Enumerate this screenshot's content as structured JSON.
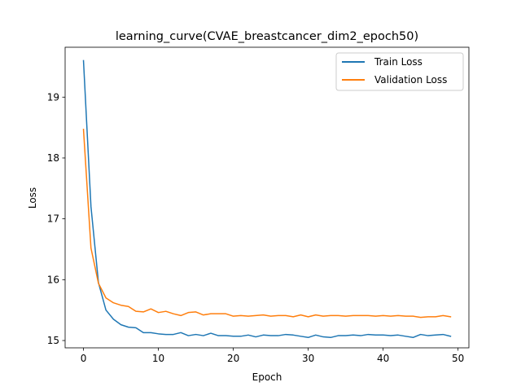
{
  "chart_data": {
    "type": "line",
    "title": "learning_curve(CVAE_breastcancer_dim2_epoch50)",
    "xlabel": "Epoch",
    "ylabel": "Loss",
    "xlim": [
      -2.45,
      51.45
    ],
    "ylim": [
      14.88,
      19.82
    ],
    "xticks": [
      0,
      10,
      20,
      30,
      40,
      50
    ],
    "yticks": [
      15,
      16,
      17,
      18,
      19
    ],
    "grid": false,
    "legend_position": "top-right",
    "x": [
      0,
      1,
      2,
      3,
      4,
      5,
      6,
      7,
      8,
      9,
      10,
      11,
      12,
      13,
      14,
      15,
      16,
      17,
      18,
      19,
      20,
      21,
      22,
      23,
      24,
      25,
      26,
      27,
      28,
      29,
      30,
      31,
      32,
      33,
      34,
      35,
      36,
      37,
      38,
      39,
      40,
      41,
      42,
      43,
      44,
      45,
      46,
      47,
      48,
      49
    ],
    "series": [
      {
        "name": "Train Loss",
        "color": "#1f77b4",
        "values": [
          19.6,
          17.2,
          15.95,
          15.5,
          15.35,
          15.26,
          15.22,
          15.21,
          15.13,
          15.13,
          15.11,
          15.1,
          15.1,
          15.13,
          15.08,
          15.1,
          15.08,
          15.12,
          15.08,
          15.08,
          15.07,
          15.07,
          15.09,
          15.06,
          15.09,
          15.08,
          15.08,
          15.1,
          15.09,
          15.07,
          15.05,
          15.09,
          15.06,
          15.05,
          15.08,
          15.08,
          15.09,
          15.08,
          15.1,
          15.09,
          15.09,
          15.08,
          15.09,
          15.07,
          15.05,
          15.1,
          15.08,
          15.09,
          15.1,
          15.07
        ]
      },
      {
        "name": "Validation Loss",
        "color": "#ff7f0e",
        "values": [
          18.47,
          16.52,
          15.94,
          15.7,
          15.62,
          15.58,
          15.56,
          15.48,
          15.47,
          15.52,
          15.46,
          15.48,
          15.44,
          15.41,
          15.46,
          15.47,
          15.42,
          15.44,
          15.44,
          15.44,
          15.4,
          15.41,
          15.4,
          15.41,
          15.42,
          15.4,
          15.41,
          15.41,
          15.39,
          15.42,
          15.39,
          15.42,
          15.4,
          15.41,
          15.41,
          15.4,
          15.41,
          15.41,
          15.41,
          15.4,
          15.41,
          15.4,
          15.41,
          15.4,
          15.4,
          15.38,
          15.39,
          15.39,
          15.41,
          15.39
        ]
      }
    ]
  }
}
